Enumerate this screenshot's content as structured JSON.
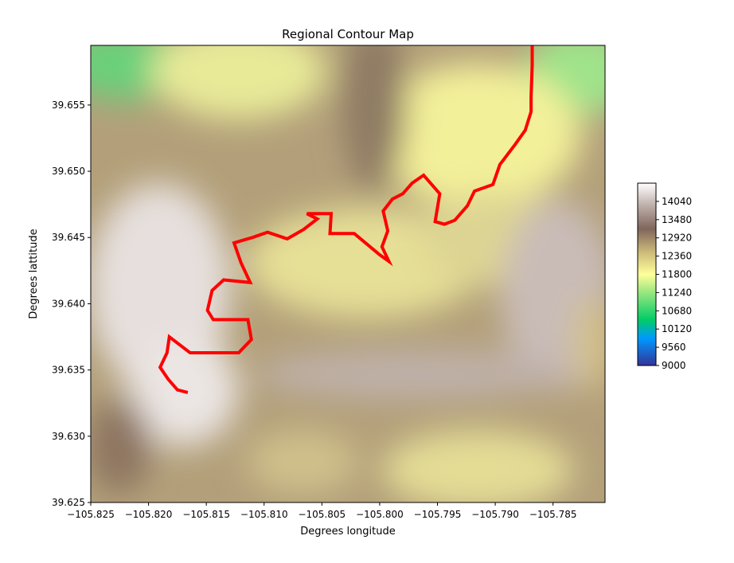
{
  "chart_data": {
    "type": "heatmap",
    "title": "Regional Contour Map",
    "xlabel": "Degrees longitude",
    "ylabel": "Degrees lattitude",
    "xlim": [
      -105.825,
      -105.7805
    ],
    "ylim": [
      39.625,
      39.6595
    ],
    "x_ticks": [
      "−105.825",
      "−105.820",
      "−105.815",
      "−105.810",
      "−105.805",
      "−105.800",
      "−105.795",
      "−105.790",
      "−105.785"
    ],
    "x_tick_values": [
      -105.825,
      -105.82,
      -105.815,
      -105.81,
      -105.805,
      -105.8,
      -105.795,
      -105.79,
      -105.785
    ],
    "y_ticks": [
      "39.625",
      "39.630",
      "39.635",
      "39.640",
      "39.645",
      "39.650",
      "39.655"
    ],
    "y_tick_values": [
      39.625,
      39.63,
      39.635,
      39.64,
      39.645,
      39.65,
      39.655
    ],
    "colorbar": {
      "min": 9000,
      "max": 14600,
      "ticks": [
        "9000",
        "9560",
        "10120",
        "10680",
        "11240",
        "11800",
        "12360",
        "12920",
        "13480",
        "14040"
      ],
      "tick_values": [
        9000,
        9560,
        10120,
        10680,
        11240,
        11800,
        12360,
        12920,
        13480,
        14040
      ],
      "colormap": "terrain"
    },
    "path": {
      "name": "route",
      "color": "#ff0000",
      "points": [
        [
          -105.8166,
          39.6333
        ],
        [
          -105.8175,
          39.6335
        ],
        [
          -105.8183,
          39.6343
        ],
        [
          -105.819,
          39.6352
        ],
        [
          -105.8184,
          39.6363
        ],
        [
          -105.8182,
          39.6375
        ],
        [
          -105.8164,
          39.6363
        ],
        [
          -105.8137,
          39.6363
        ],
        [
          -105.8122,
          39.6363
        ],
        [
          -105.8111,
          39.6373
        ],
        [
          -105.8114,
          39.6388
        ],
        [
          -105.8144,
          39.6388
        ],
        [
          -105.8149,
          39.6395
        ],
        [
          -105.8145,
          39.641
        ],
        [
          -105.8135,
          39.6418
        ],
        [
          -105.8112,
          39.6416
        ],
        [
          -105.812,
          39.6431
        ],
        [
          -105.8126,
          39.6446
        ],
        [
          -105.811,
          39.645
        ],
        [
          -105.8097,
          39.6454
        ],
        [
          -105.808,
          39.6449
        ],
        [
          -105.8066,
          39.6456
        ],
        [
          -105.8054,
          39.6464
        ],
        [
          -105.8063,
          39.6468
        ],
        [
          -105.8042,
          39.6468
        ],
        [
          -105.8043,
          39.6453
        ],
        [
          -105.8022,
          39.6453
        ],
        [
          -105.8,
          39.6437
        ],
        [
          -105.7992,
          39.6432
        ],
        [
          -105.7998,
          39.6443
        ],
        [
          -105.7993,
          39.6455
        ],
        [
          -105.7997,
          39.647
        ],
        [
          -105.7989,
          39.6479
        ],
        [
          -105.798,
          39.6483
        ],
        [
          -105.7972,
          39.6491
        ],
        [
          -105.7962,
          39.6497
        ],
        [
          -105.7948,
          39.6483
        ],
        [
          -105.7952,
          39.6462
        ],
        [
          -105.7944,
          39.646
        ],
        [
          -105.7935,
          39.6463
        ],
        [
          -105.7924,
          39.6474
        ],
        [
          -105.7918,
          39.6485
        ],
        [
          -105.7902,
          39.649
        ],
        [
          -105.7896,
          39.6505
        ],
        [
          -105.7883,
          39.652
        ],
        [
          -105.7874,
          39.6531
        ],
        [
          -105.7869,
          39.6545
        ],
        [
          -105.7869,
          39.6556
        ],
        [
          -105.7868,
          39.658
        ],
        [
          -105.7868,
          39.6595
        ]
      ]
    }
  }
}
